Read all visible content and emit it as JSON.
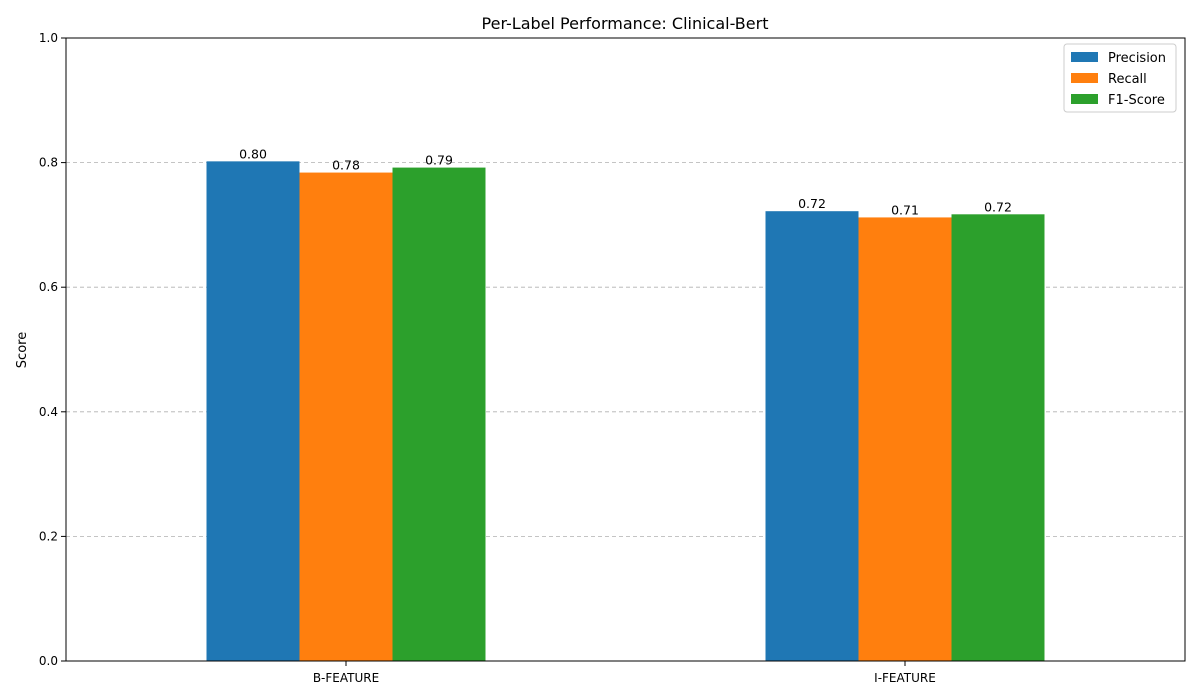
{
  "chart_data": {
    "type": "bar",
    "title": "Per-Label Performance: Clinical-Bert",
    "xlabel": "",
    "ylabel": "Score",
    "ylim": [
      0,
      1.0
    ],
    "yticks": [
      "0.0",
      "0.2",
      "0.4",
      "0.6",
      "0.8",
      "1.0"
    ],
    "categories": [
      "B-FEATURE",
      "I-FEATURE"
    ],
    "series": [
      {
        "name": "Precision",
        "values": [
          0.802,
          0.722
        ],
        "labels": [
          "0.80",
          "0.72"
        ],
        "color": "#1f77b4"
      },
      {
        "name": "Recall",
        "values": [
          0.784,
          0.712
        ],
        "labels": [
          "0.78",
          "0.71"
        ],
        "color": "#ff7f0e"
      },
      {
        "name": "F1-Score",
        "values": [
          0.792,
          0.717
        ],
        "labels": [
          "0.79",
          "0.72"
        ],
        "color": "#2ca02c"
      }
    ],
    "grid": "y-dashed",
    "legend_position": "top-right"
  }
}
